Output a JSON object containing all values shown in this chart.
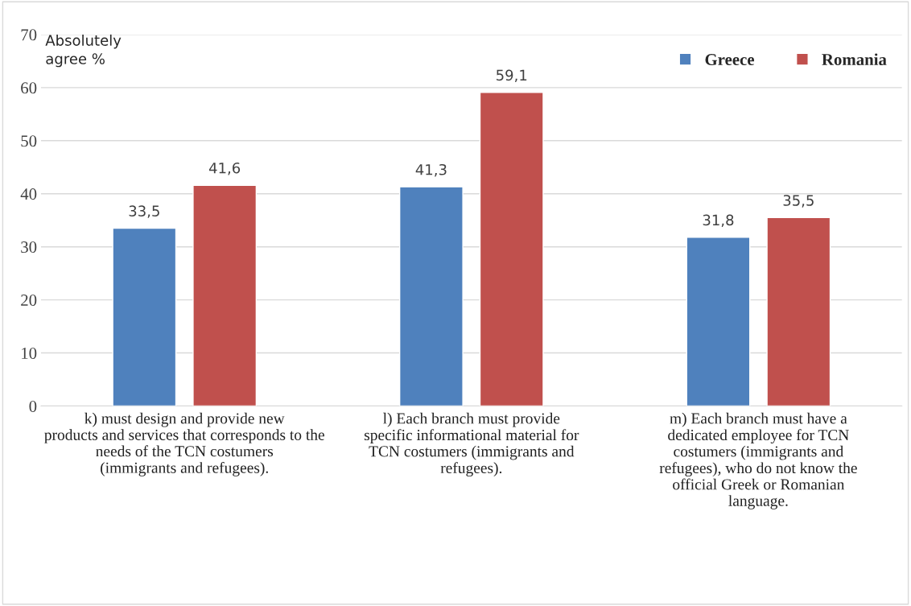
{
  "chart_data": {
    "type": "bar",
    "ylabel": "Absolutely\nagree %",
    "categories": [
      "k) must design and provide new\nproducts and services that corresponds to the\nneeds of the TCN costumers\n(immigrants and refugees).",
      "l) Each branch must provide\nspecific informational material for\nTCN costumers (immigrants and\nrefugees).",
      "m) Each branch must have a\ndedicated employee for TCN\ncostumers (immigrants and\nrefugees), who do not know the\nofficial Greek or Romanian\nlanguage."
    ],
    "series": [
      {
        "name": "Greece",
        "color": "#4f81bd",
        "values": [
          33.5,
          41.3,
          31.8
        ],
        "value_labels": [
          "33,5",
          "41,3",
          "31,8"
        ]
      },
      {
        "name": "Romania",
        "color": "#c0504d",
        "values": [
          41.6,
          59.1,
          35.5
        ],
        "value_labels": [
          "41,6",
          "59,1",
          "35,5"
        ]
      }
    ],
    "ylim": [
      0,
      70
    ],
    "yticks": [
      0,
      10,
      20,
      30,
      40,
      50,
      60,
      70
    ],
    "grid": "y",
    "legend": "top right"
  }
}
